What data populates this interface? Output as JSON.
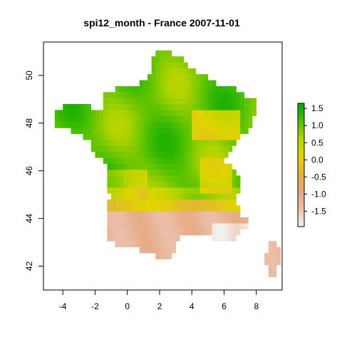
{
  "title": "spi12_month - France 2007-11-01",
  "x_axis": {
    "ticks": [
      {
        "value": -4,
        "label": "-4"
      },
      {
        "value": -2,
        "label": "-2"
      },
      {
        "value": 0,
        "label": "0"
      },
      {
        "value": 2,
        "label": "2"
      },
      {
        "value": 4,
        "label": "4"
      },
      {
        "value": 6,
        "label": "6"
      },
      {
        "value": 8,
        "label": "8"
      }
    ],
    "range": [
      -5.2,
      9.6
    ]
  },
  "y_axis": {
    "ticks": [
      {
        "value": 42,
        "label": "42"
      },
      {
        "value": 44,
        "label": "44"
      },
      {
        "value": 46,
        "label": "46"
      },
      {
        "value": 48,
        "label": "48"
      },
      {
        "value": 50,
        "label": "50"
      }
    ],
    "range": [
      41.0,
      51.4
    ]
  },
  "colorbar": {
    "range": [
      -1.95,
      1.65
    ],
    "ticks": [
      {
        "value": 1.5,
        "label": "1.5"
      },
      {
        "value": 1.0,
        "label": "1.0"
      },
      {
        "value": 0.5,
        "label": "0.5"
      },
      {
        "value": 0.0,
        "label": "0.0"
      },
      {
        "value": -0.5,
        "label": "-0.5"
      },
      {
        "value": -1.0,
        "label": "-1.0"
      },
      {
        "value": -1.5,
        "label": "-1.5"
      }
    ],
    "colors": [
      "#f2f2f2",
      "#ebc3b0",
      "#e6a57e",
      "#e3b23c",
      "#e0d400",
      "#b3d400",
      "#4fc000",
      "#00a600"
    ]
  }
}
